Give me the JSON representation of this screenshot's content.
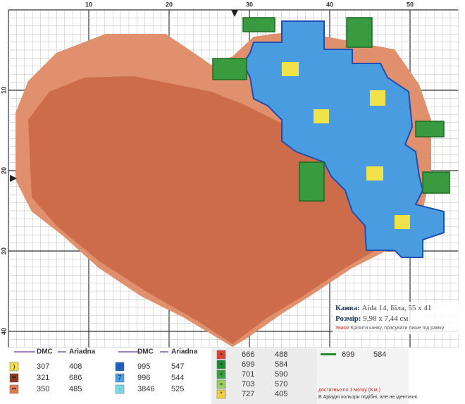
{
  "grid": {
    "top_numbers": [
      "10",
      "20",
      "30",
      "40",
      "50"
    ],
    "left_numbers": [
      "10",
      "20",
      "30",
      "40"
    ]
  },
  "info": {
    "canvas_label": "Канва:",
    "canvas": "Aida 14, Біла, 55 x 41",
    "size_label": "Розмір:",
    "size": "9,98 x 7,44 см",
    "note_label": "Увага!",
    "note": "Кріпити канву, прасувати лише під рамку"
  },
  "legend": {
    "headers": [
      "DMC",
      "Ariadna",
      "DMC",
      "Ariadna"
    ],
    "groups": [
      [
        {
          "symbol": ")",
          "dmc": "307",
          "ariadna": "408"
        },
        {
          "symbol": "••",
          "dmc": "321",
          "ariadna": "686"
        },
        {
          "symbol": "••",
          "dmc": "350",
          "ariadna": "485"
        }
      ],
      [
        {
          "symbol": ":",
          "dmc": "995",
          "ariadna": "547"
        },
        {
          "symbol": "7",
          "dmc": "996",
          "ariadna": "544"
        },
        {
          "symbol": "·",
          "dmc": "3846",
          "ariadna": "525"
        }
      ],
      [
        {
          "symbol": "•",
          "dmc": "666",
          "ariadna": "488"
        },
        {
          "symbol": "•",
          "dmc": "699",
          "ariadna": "584"
        },
        {
          "symbol": "<",
          "dmc": "701",
          "ariadna": "590"
        },
        {
          "symbol": "=",
          "dmc": "703",
          "ariadna": "570"
        },
        {
          "symbol": "*",
          "dmc": "727",
          "ariadna": "405"
        }
      ],
      [
        {
          "symbol": "—",
          "dmc": "699",
          "ariadna": "584"
        }
      ]
    ],
    "footnote1": "достатньо по 1 мотку (8 м.)",
    "footnote2": "В Аріадні кольори подібні, але не ідентичні."
  }
}
